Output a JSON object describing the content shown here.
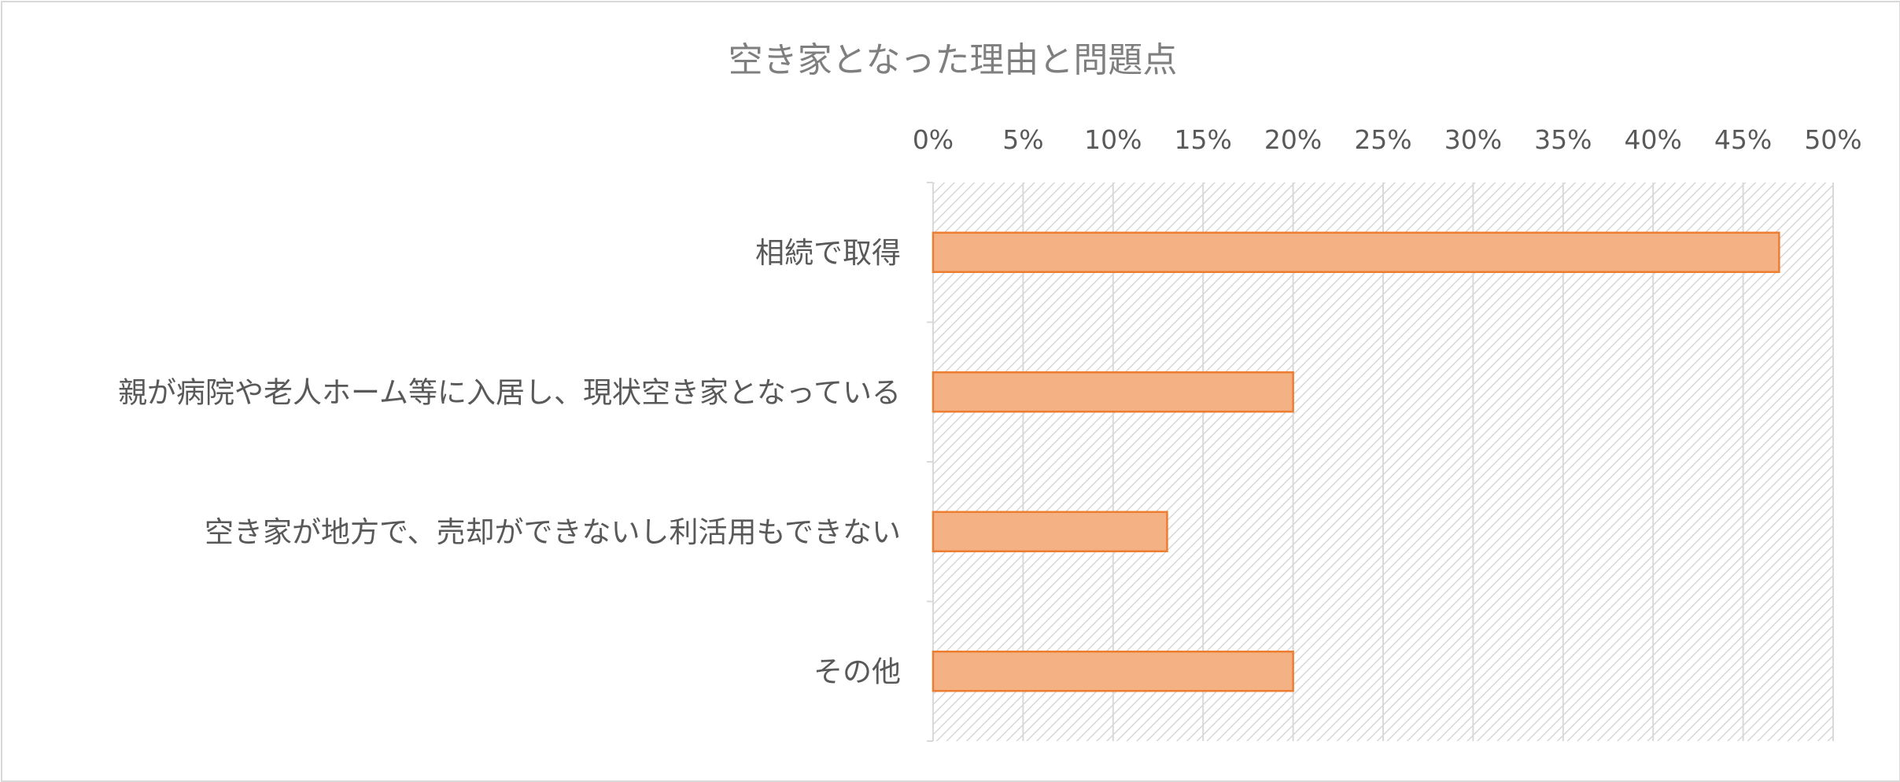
{
  "chart_data": {
    "type": "bar",
    "orientation": "horizontal",
    "title": "空き家となった理由と問題点",
    "categories": [
      "相続で取得",
      "親が病院や老人ホーム等に入居し、現状空き家となっている",
      "空き家が地方で、売却ができないし利活用もできない",
      "その他"
    ],
    "values": [
      47,
      20,
      13,
      20
    ],
    "value_unit": "%",
    "xlim": [
      0,
      50
    ],
    "x_ticks": [
      "0%",
      "5%",
      "10%",
      "15%",
      "20%",
      "25%",
      "30%",
      "35%",
      "40%",
      "45%",
      "50%"
    ],
    "x_axis_position": "top",
    "grid": true,
    "plot_background": "diagonal hatch",
    "legend": "none"
  },
  "colors": {
    "bar_fill": "#f4b183",
    "bar_stroke": "#ed7d31",
    "gridline": "#d9d9d9",
    "hatch": "#d0d0d0",
    "title": "#7f7f7f",
    "label": "#595959",
    "frame": "#d9d9d9"
  }
}
